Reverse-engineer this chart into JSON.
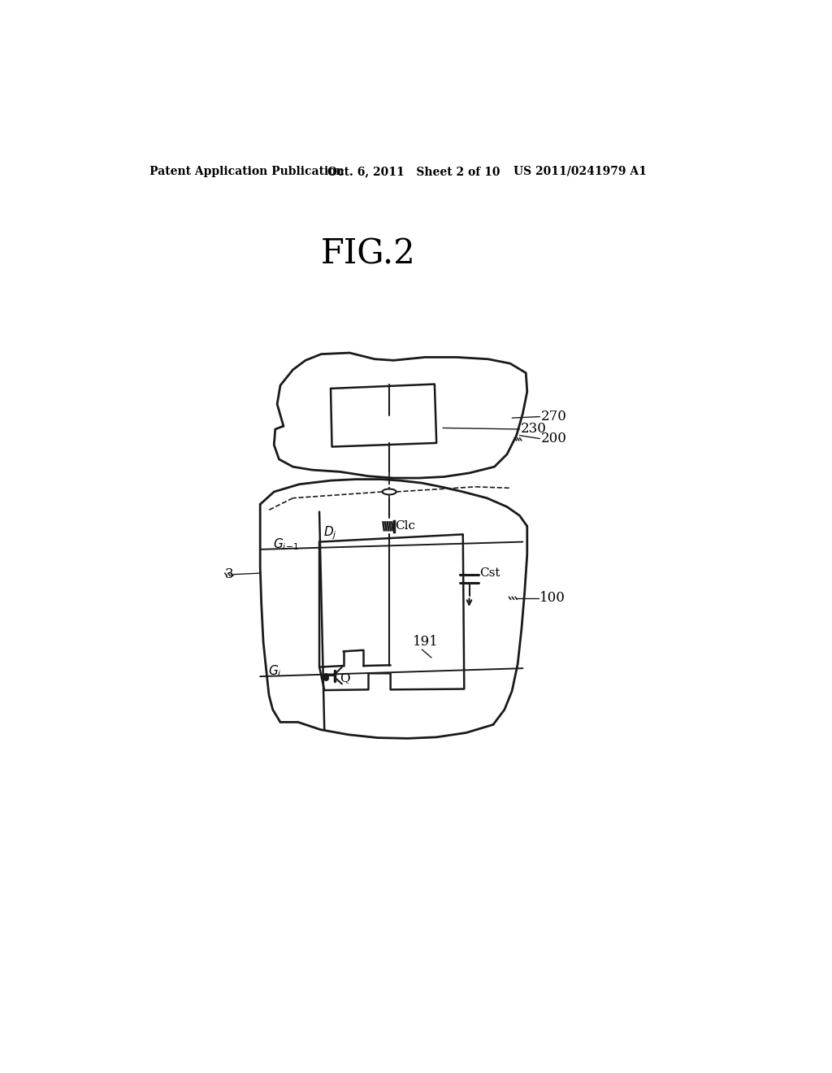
{
  "bg_color": "#ffffff",
  "line_color": "#1a1a1a",
  "header_left": "Patent Application Publication",
  "header_mid": "Oct. 6, 2011   Sheet 2 of 10",
  "header_right": "US 2011/0241979 A1",
  "fig_title": "FIG.2"
}
